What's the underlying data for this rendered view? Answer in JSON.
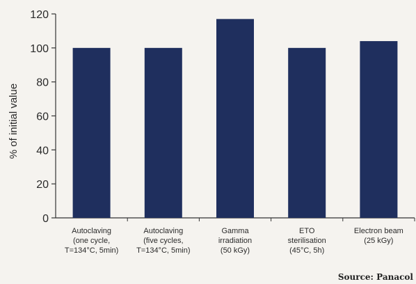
{
  "chart_data": {
    "type": "bar",
    "ylabel": "% of initial value",
    "ylim": [
      0,
      120
    ],
    "yticks": [
      0,
      20,
      40,
      60,
      80,
      100,
      120
    ],
    "grid": false,
    "categories": [
      [
        "Autoclaving",
        "(one cycle,",
        "T=134°C, 5min)"
      ],
      [
        "Autoclaving",
        "(five cycles,",
        "T=134°C, 5min)"
      ],
      [
        "Gamma",
        "irradiation",
        "(50 kGy)"
      ],
      [
        "ETO",
        "sterilisation",
        "(45°C, 5h)"
      ],
      [
        "Electron beam",
        "(25 kGy)"
      ]
    ],
    "values": [
      100,
      100,
      117,
      100,
      104
    ],
    "bar_color": "#1f2f5e",
    "source": "Source: Panacol"
  }
}
